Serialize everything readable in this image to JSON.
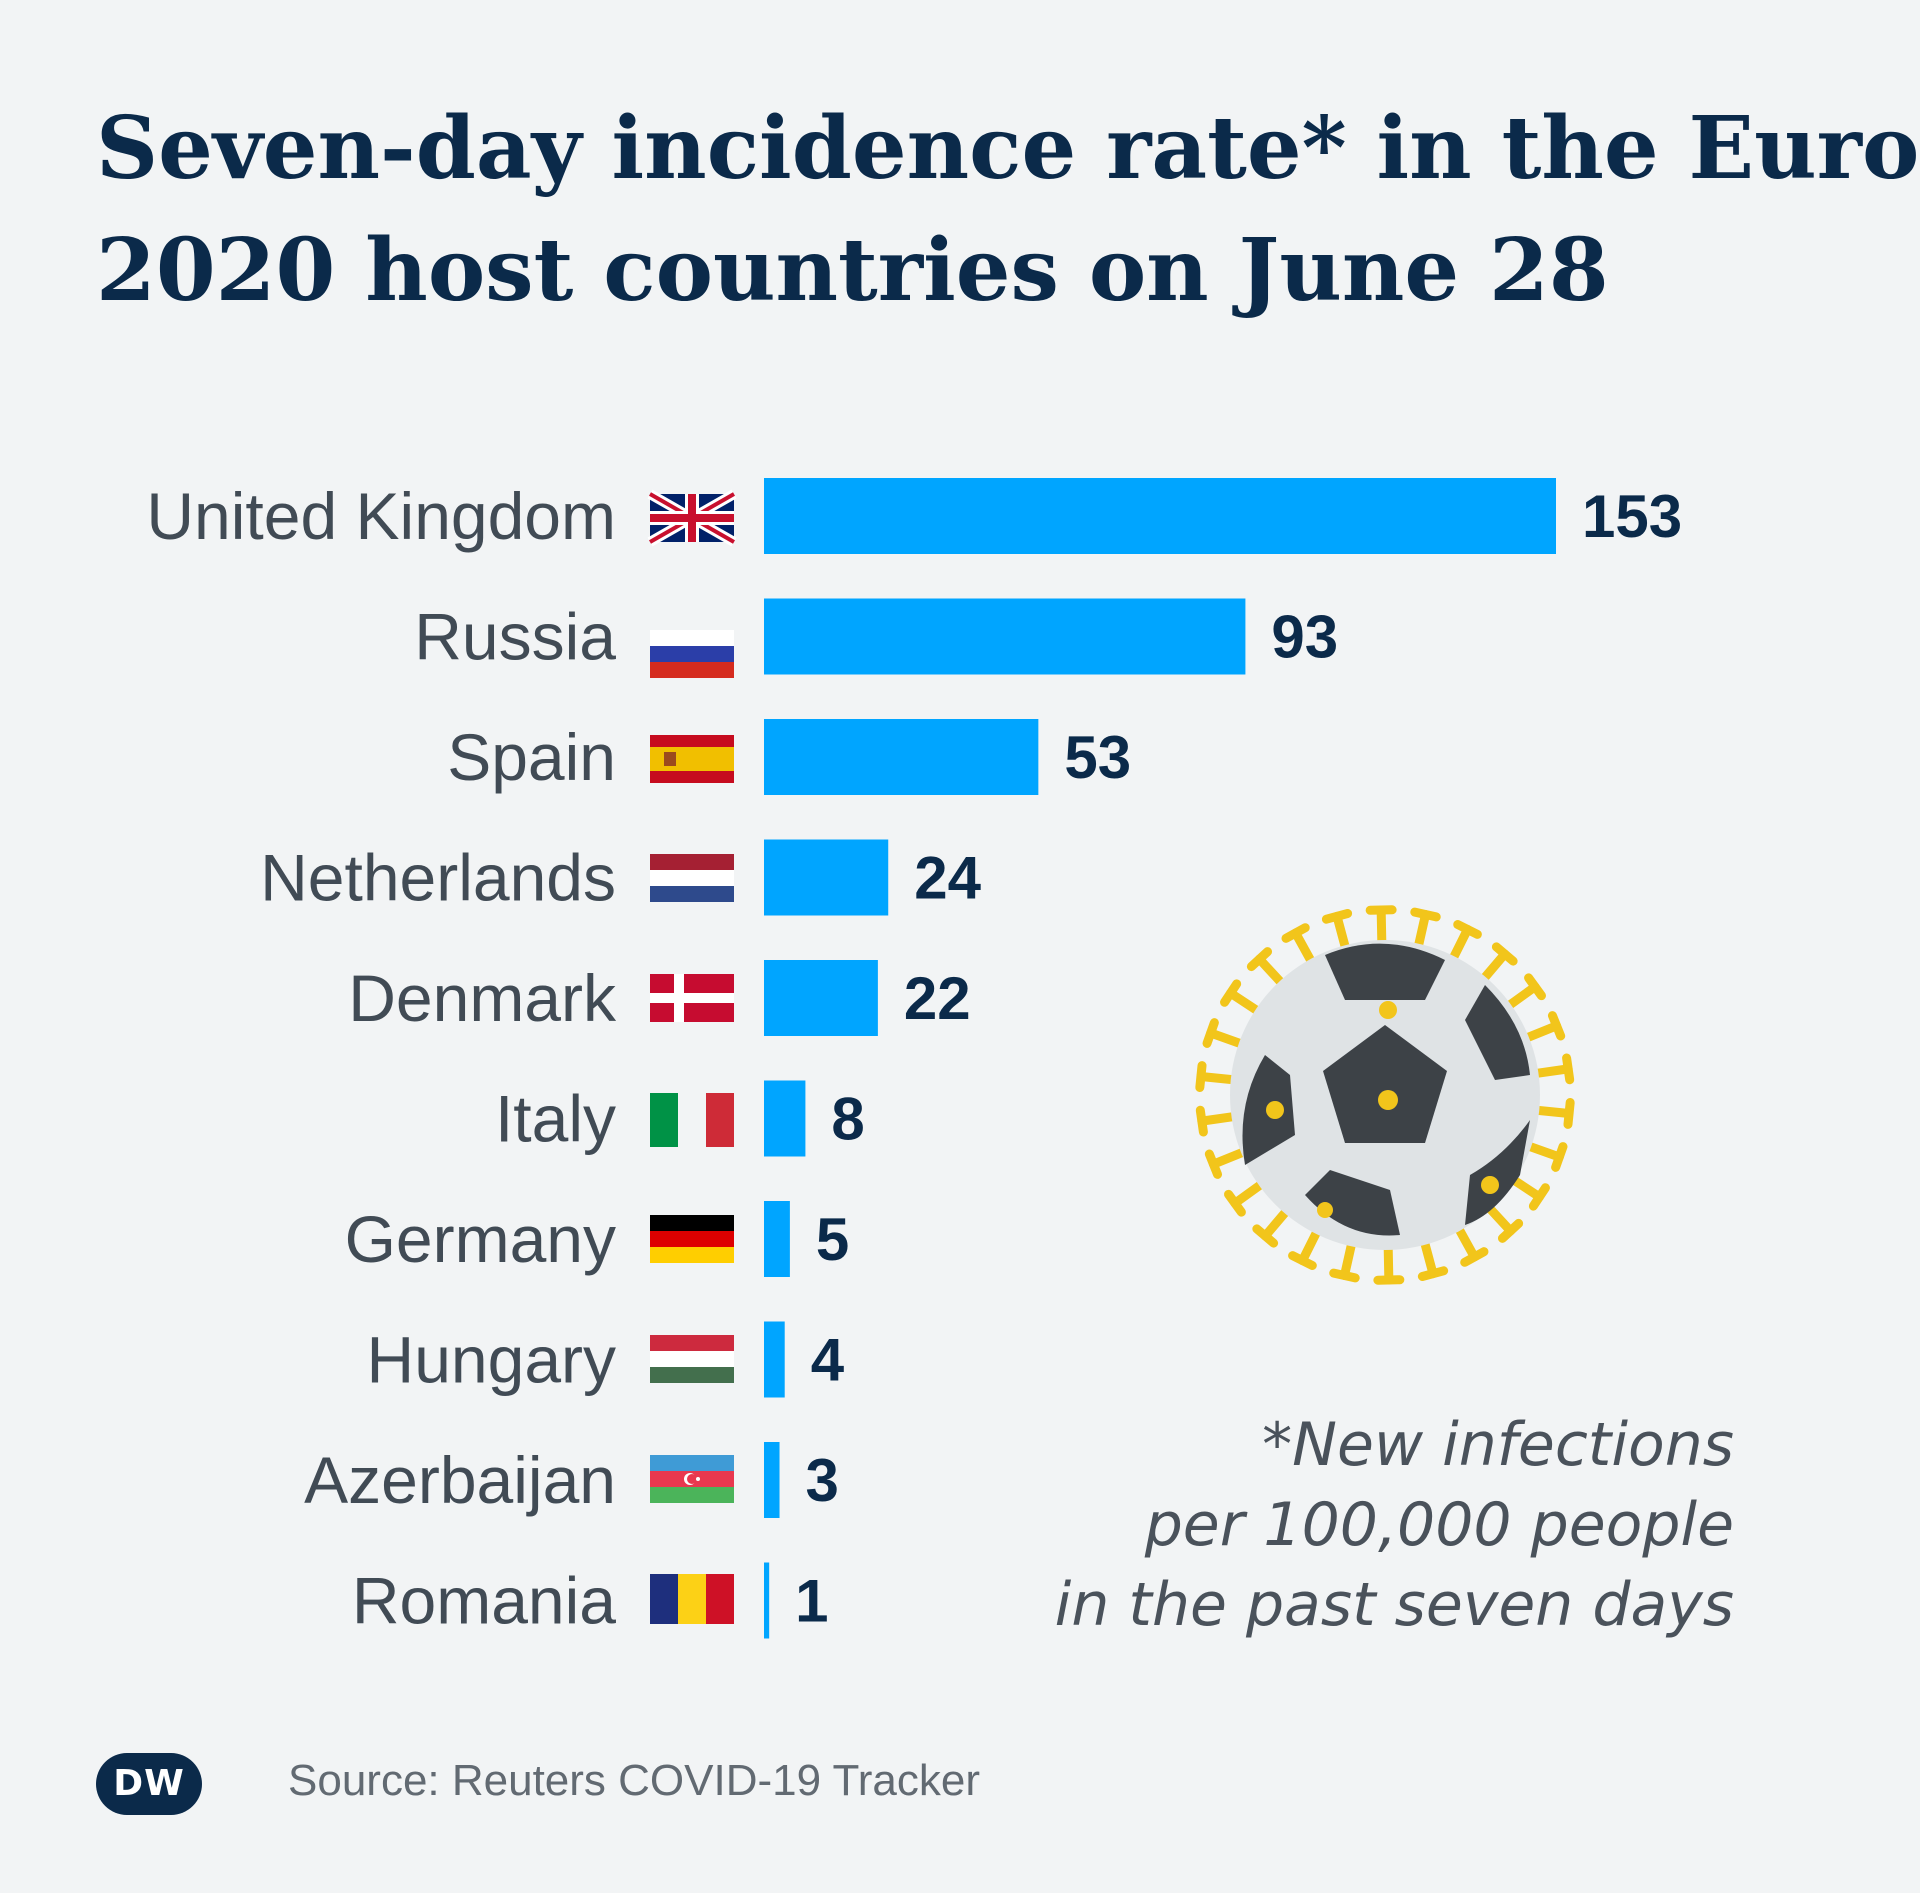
{
  "title": {
    "line1": "Seven-day incidence rate* in the Euro",
    "line2": "2020 host countries on June 28"
  },
  "chart_data": {
    "type": "bar",
    "orientation": "horizontal",
    "title": "Seven-day incidence rate* in the Euro 2020 host countries on June 28",
    "categories": [
      "United Kingdom",
      "Russia",
      "Spain",
      "Netherlands",
      "Denmark",
      "Italy",
      "Germany",
      "Hungary",
      "Azerbaijan",
      "Romania"
    ],
    "values": [
      153,
      93,
      53,
      24,
      22,
      8,
      5,
      4,
      3,
      1
    ],
    "xlim": [
      0,
      153
    ],
    "xlabel": "",
    "ylabel": "",
    "grid": false,
    "bar_color": "#00a5ff"
  },
  "flags": [
    "uk-flag-icon",
    "russia-flag-icon",
    "spain-flag-icon",
    "netherlands-flag-icon",
    "denmark-flag-icon",
    "italy-flag-icon",
    "germany-flag-icon",
    "hungary-flag-icon",
    "azerbaijan-flag-icon",
    "romania-flag-icon"
  ],
  "illustration": "virus-football-icon",
  "note": {
    "line1": "*New infections",
    "line2": "per 100,000 people",
    "line3": "in the past seven days"
  },
  "logo": "DW",
  "source": "Source: Reuters COVID-19 Tracker",
  "colors": {
    "background": "#f2f4f5",
    "title": "#0b2a4a",
    "bar": "#00a5ff",
    "label": "#414b55"
  }
}
